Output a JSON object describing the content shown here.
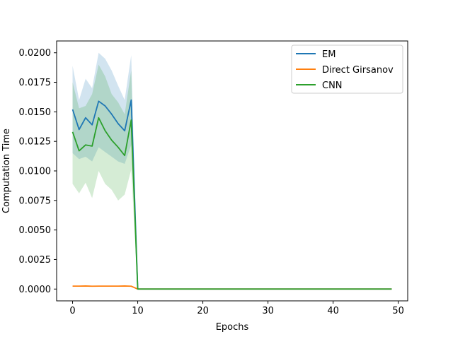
{
  "chart_data": {
    "type": "line",
    "xlabel": "Epochs",
    "ylabel": "Computation Time",
    "xlim": [
      -2.45,
      51.45
    ],
    "ylim": [
      -0.001,
      0.021
    ],
    "xticks": [
      0,
      10,
      20,
      30,
      40,
      50
    ],
    "xtick_labels": [
      "0",
      "10",
      "20",
      "30",
      "40",
      "50"
    ],
    "yticks": [
      0.0,
      0.0025,
      0.005,
      0.0075,
      0.01,
      0.0125,
      0.015,
      0.0175,
      0.02
    ],
    "ytick_labels": [
      "0.0000",
      "0.0025",
      "0.0050",
      "0.0075",
      "0.0100",
      "0.0125",
      "0.0150",
      "0.0175",
      "0.0200"
    ],
    "grid": false,
    "legend_position": "top-right",
    "x_start": 0,
    "x_end": 49,
    "series": [
      {
        "name": "EM",
        "color": "#1f77b4",
        "values": [
          0.0152,
          0.0135,
          0.0145,
          0.0139,
          0.0159,
          0.0155,
          0.0148,
          0.014,
          0.0134,
          0.016,
          0.0,
          0.0,
          0.0,
          0.0,
          0.0,
          0.0,
          0.0,
          0.0,
          0.0,
          0.0,
          0.0,
          0.0,
          0.0,
          0.0,
          0.0,
          0.0,
          0.0,
          0.0,
          0.0,
          0.0,
          0.0,
          0.0,
          0.0,
          0.0,
          0.0,
          0.0,
          0.0,
          0.0,
          0.0,
          0.0,
          0.0,
          0.0,
          0.0,
          0.0,
          0.0,
          0.0,
          0.0,
          0.0,
          0.0,
          0.0
        ],
        "upper": [
          0.0189,
          0.016,
          0.0178,
          0.017,
          0.02,
          0.0195,
          0.0185,
          0.0172,
          0.016,
          0.0198,
          0.0,
          0.0,
          0.0,
          0.0,
          0.0,
          0.0,
          0.0,
          0.0,
          0.0,
          0.0,
          0.0,
          0.0,
          0.0,
          0.0,
          0.0,
          0.0,
          0.0,
          0.0,
          0.0,
          0.0,
          0.0,
          0.0,
          0.0,
          0.0,
          0.0,
          0.0,
          0.0,
          0.0,
          0.0,
          0.0,
          0.0,
          0.0,
          0.0,
          0.0,
          0.0,
          0.0,
          0.0,
          0.0,
          0.0,
          0.0
        ],
        "lower": [
          0.0115,
          0.011,
          0.0112,
          0.0108,
          0.012,
          0.0116,
          0.0112,
          0.0108,
          0.0106,
          0.0122,
          0.0,
          0.0,
          0.0,
          0.0,
          0.0,
          0.0,
          0.0,
          0.0,
          0.0,
          0.0,
          0.0,
          0.0,
          0.0,
          0.0,
          0.0,
          0.0,
          0.0,
          0.0,
          0.0,
          0.0,
          0.0,
          0.0,
          0.0,
          0.0,
          0.0,
          0.0,
          0.0,
          0.0,
          0.0,
          0.0,
          0.0,
          0.0,
          0.0,
          0.0,
          0.0,
          0.0,
          0.0,
          0.0,
          0.0,
          0.0
        ]
      },
      {
        "name": "Direct Girsanov",
        "color": "#ff7f0e",
        "values": [
          0.00025,
          0.00025,
          0.00026,
          0.00024,
          0.00025,
          0.00025,
          0.00025,
          0.00025,
          0.00026,
          0.00024,
          0.0,
          0.0,
          0.0,
          0.0,
          0.0,
          0.0,
          0.0,
          0.0,
          0.0,
          0.0,
          0.0,
          0.0,
          0.0,
          0.0,
          0.0,
          0.0,
          0.0,
          0.0,
          0.0,
          0.0,
          0.0,
          0.0,
          0.0,
          0.0,
          0.0,
          0.0,
          0.0,
          0.0,
          0.0,
          0.0,
          0.0,
          0.0,
          0.0,
          0.0,
          0.0,
          0.0,
          0.0,
          0.0,
          0.0,
          0.0
        ],
        "upper": [
          0.00028,
          0.00028,
          0.00029,
          0.00027,
          0.00028,
          0.00028,
          0.00028,
          0.00028,
          0.00029,
          0.00027,
          0.0,
          0.0,
          0.0,
          0.0,
          0.0,
          0.0,
          0.0,
          0.0,
          0.0,
          0.0,
          0.0,
          0.0,
          0.0,
          0.0,
          0.0,
          0.0,
          0.0,
          0.0,
          0.0,
          0.0,
          0.0,
          0.0,
          0.0,
          0.0,
          0.0,
          0.0,
          0.0,
          0.0,
          0.0,
          0.0,
          0.0,
          0.0,
          0.0,
          0.0,
          0.0,
          0.0,
          0.0,
          0.0,
          0.0,
          0.0
        ],
        "lower": [
          0.00022,
          0.00022,
          0.00023,
          0.00021,
          0.00022,
          0.00022,
          0.00022,
          0.00022,
          0.00023,
          0.00021,
          0.0,
          0.0,
          0.0,
          0.0,
          0.0,
          0.0,
          0.0,
          0.0,
          0.0,
          0.0,
          0.0,
          0.0,
          0.0,
          0.0,
          0.0,
          0.0,
          0.0,
          0.0,
          0.0,
          0.0,
          0.0,
          0.0,
          0.0,
          0.0,
          0.0,
          0.0,
          0.0,
          0.0,
          0.0,
          0.0,
          0.0,
          0.0,
          0.0,
          0.0,
          0.0,
          0.0,
          0.0,
          0.0,
          0.0,
          0.0
        ]
      },
      {
        "name": "CNN",
        "color": "#2ca02c",
        "values": [
          0.0133,
          0.0117,
          0.0122,
          0.0121,
          0.0145,
          0.0134,
          0.0126,
          0.012,
          0.0113,
          0.0143,
          0.0,
          0.0,
          0.0,
          0.0,
          0.0,
          0.0,
          0.0,
          0.0,
          0.0,
          0.0,
          0.0,
          0.0,
          0.0,
          0.0,
          0.0,
          0.0,
          0.0,
          0.0,
          0.0,
          0.0,
          0.0,
          0.0,
          0.0,
          0.0,
          0.0,
          0.0,
          0.0,
          0.0,
          0.0,
          0.0,
          0.0,
          0.0,
          0.0,
          0.0,
          0.0,
          0.0,
          0.0,
          0.0,
          0.0,
          0.0
        ],
        "upper": [
          0.0175,
          0.0153,
          0.0155,
          0.0165,
          0.019,
          0.018,
          0.0165,
          0.0158,
          0.0148,
          0.0185,
          0.0,
          0.0,
          0.0,
          0.0,
          0.0,
          0.0,
          0.0,
          0.0,
          0.0,
          0.0,
          0.0,
          0.0,
          0.0,
          0.0,
          0.0,
          0.0,
          0.0,
          0.0,
          0.0,
          0.0,
          0.0,
          0.0,
          0.0,
          0.0,
          0.0,
          0.0,
          0.0,
          0.0,
          0.0,
          0.0,
          0.0,
          0.0,
          0.0,
          0.0,
          0.0,
          0.0,
          0.0,
          0.0,
          0.0,
          0.0
        ],
        "lower": [
          0.0089,
          0.0081,
          0.009,
          0.0077,
          0.01,
          0.0089,
          0.0084,
          0.0075,
          0.008,
          0.0101,
          0.0,
          0.0,
          0.0,
          0.0,
          0.0,
          0.0,
          0.0,
          0.0,
          0.0,
          0.0,
          0.0,
          0.0,
          0.0,
          0.0,
          0.0,
          0.0,
          0.0,
          0.0,
          0.0,
          0.0,
          0.0,
          0.0,
          0.0,
          0.0,
          0.0,
          0.0,
          0.0,
          0.0,
          0.0,
          0.0,
          0.0,
          0.0,
          0.0,
          0.0,
          0.0,
          0.0,
          0.0,
          0.0,
          0.0,
          0.0
        ]
      }
    ]
  }
}
